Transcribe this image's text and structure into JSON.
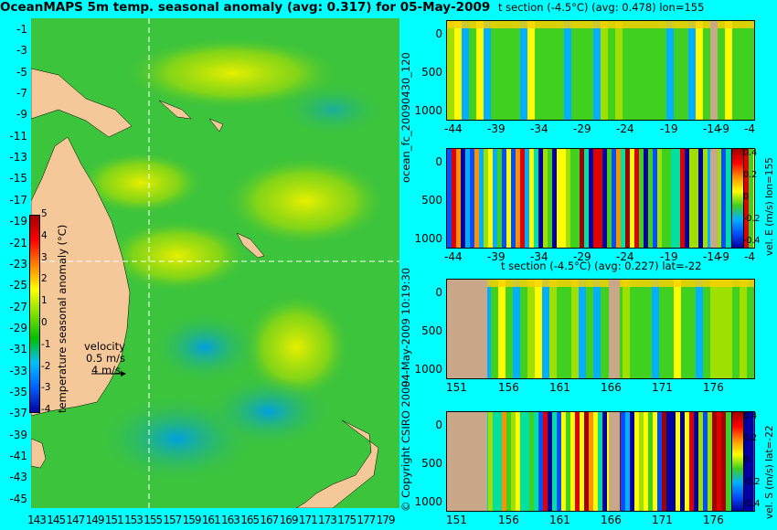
{
  "title": "OceanMAPS 5m temp. seasonal anomaly (avg: 0.317) for 05-May-2009",
  "map": {
    "lat_ticks": [
      "-1",
      "-3",
      "-5",
      "-7",
      "-9",
      "-11",
      "-13",
      "-15",
      "-17",
      "-19",
      "-21",
      "-23",
      "-25",
      "-27",
      "-29",
      "-31",
      "-33",
      "-35",
      "-37",
      "-39",
      "-41",
      "-43",
      "-45"
    ],
    "lon_ticks": [
      "143",
      "145",
      "147",
      "149",
      "151",
      "153",
      "155",
      "157",
      "159",
      "161",
      "163",
      "165",
      "167",
      "169",
      "171",
      "173",
      "175",
      "177",
      "179"
    ],
    "colorbar_label": "temperature seasonal anomaly (°C)",
    "colorbar_ticks": [
      "5",
      "4",
      "3",
      "2",
      "1",
      "0",
      "-1",
      "-2",
      "-3",
      "-4"
    ],
    "velocity_legend": {
      "label": "velocity",
      "value": "0.5 m/s",
      "scale": "4 m/s"
    },
    "colors": {
      "land": "#f5c89a",
      "ocean_base": "#3cc43c"
    }
  },
  "side_labels": {
    "run_id": "ocean_fc_20090430_120",
    "timestamp": "04-May-2009 10:19:30",
    "copyright": "© Copyright CSIRO 2009"
  },
  "panels": [
    {
      "id": "t-section-lon",
      "title": "t section (-4.5°C) (avg: 0.478) lon=155",
      "x_ticks": [
        "-44",
        "-39",
        "-34",
        "-29",
        "-24",
        "-19",
        "-14",
        "-9",
        "-4"
      ],
      "y_ticks": [
        "0",
        "500",
        "1000"
      ],
      "right_label": "",
      "cbar_ticks": []
    },
    {
      "id": "vel-e-section",
      "title": "",
      "x_ticks": [
        "-44",
        "-39",
        "-34",
        "-29",
        "-24",
        "-19",
        "-14",
        "-9",
        "-4"
      ],
      "y_ticks": [
        "0",
        "500",
        "1000"
      ],
      "right_label": "vel. E (m/s) lon=155",
      "cbar_ticks": [
        "0.4",
        "0.2",
        "0",
        "-0.2",
        "-0.4"
      ]
    },
    {
      "id": "t-section-lat",
      "title": "t section (-4.5°C) (avg: 0.227) lat=-22",
      "x_ticks": [
        "151",
        "156",
        "161",
        "166",
        "171",
        "176"
      ],
      "y_ticks": [
        "0",
        "500",
        "1000"
      ],
      "right_label": "",
      "cbar_ticks": []
    },
    {
      "id": "vel-s-section",
      "title": "",
      "x_ticks": [
        "151",
        "156",
        "161",
        "166",
        "171",
        "176"
      ],
      "y_ticks": [
        "0",
        "500",
        "1000"
      ],
      "right_label": "vel. S (m/s) lat=-22",
      "cbar_ticks": [
        "0.4",
        "0.2",
        "0",
        "-0.2",
        "-0.4"
      ]
    }
  ]
}
